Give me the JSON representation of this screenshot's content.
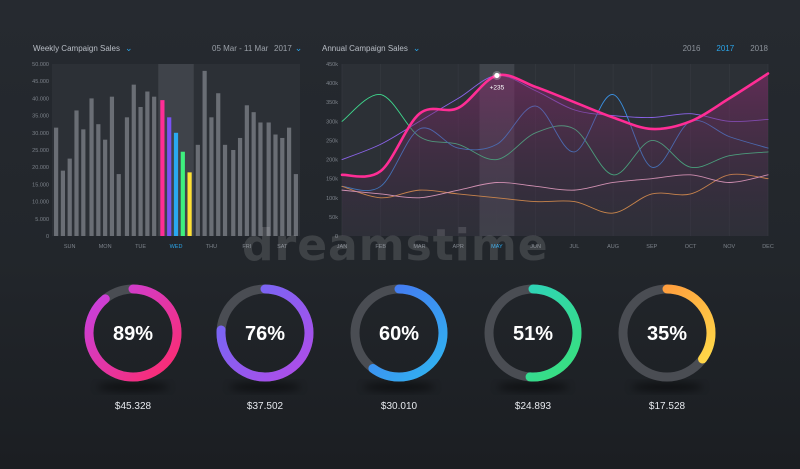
{
  "weekly": {
    "title": "Weekly Campaign Sales",
    "date_range": "05 Mar - 11 Mar",
    "year": "2017"
  },
  "annual": {
    "title": "Annual Campaign Sales",
    "years": [
      "2016",
      "2017",
      "2018"
    ],
    "active_year": "2017",
    "marker_label": "+235"
  },
  "chart_data": [
    {
      "type": "bar",
      "categories": [
        "SUN",
        "MON",
        "TUE",
        "WED",
        "THU",
        "FRI",
        "SAT"
      ],
      "yticks": [
        "0",
        "5.000",
        "10.000",
        "15.000",
        "20.000",
        "25.000",
        "30.000",
        "35.000",
        "40.000",
        "45.000",
        "50.000"
      ],
      "ylim": [
        0,
        50000
      ],
      "highlighted_category": "WED",
      "series": [
        {
          "values": [
            31500,
            40000,
            34500,
            39500,
            26500,
            25000,
            33000
          ]
        },
        {
          "values": [
            19000,
            32500,
            44000,
            34500,
            48000,
            28500,
            29500
          ]
        },
        {
          "values": [
            22500,
            28000,
            37500,
            30000,
            34500,
            38000,
            28500
          ]
        },
        {
          "values": [
            36500,
            40500,
            42000,
            24500,
            41500,
            36000,
            31500
          ]
        },
        {
          "values": [
            31000,
            18000,
            40500,
            18500,
            26500,
            33000,
            18000
          ]
        }
      ],
      "highlight_colors": [
        "#ff2d95",
        "#7a52f5",
        "#2aa8f2",
        "#3ef07e",
        "#ffe135"
      ],
      "bar_color": "#6a6e75"
    },
    {
      "type": "line",
      "categories": [
        "JAN",
        "FEB",
        "MAR",
        "APR",
        "MAY",
        "JUN",
        "JUL",
        "AUG",
        "SEP",
        "OCT",
        "NOV",
        "DEC"
      ],
      "yticks": [
        "0",
        "50k",
        "100k",
        "150k",
        "200k",
        "250k",
        "300k",
        "350k",
        "400k",
        "450k"
      ],
      "ylim": [
        0,
        450000
      ],
      "highlighted_category": "MAY",
      "series": [
        {
          "color": "#ff2d95",
          "main": true,
          "values": [
            160000,
            170000,
            320000,
            335000,
            420000,
            390000,
            350000,
            310000,
            280000,
            300000,
            360000,
            425000
          ]
        },
        {
          "color": "#8a63e8",
          "values": [
            200000,
            240000,
            300000,
            360000,
            420000,
            380000,
            330000,
            315000,
            310000,
            320000,
            300000,
            305000
          ]
        },
        {
          "color": "#3fd78d",
          "values": [
            300000,
            370000,
            260000,
            240000,
            200000,
            270000,
            280000,
            160000,
            250000,
            180000,
            210000,
            220000
          ]
        },
        {
          "color": "#3a8fe0",
          "values": [
            130000,
            130000,
            280000,
            230000,
            240000,
            340000,
            220000,
            370000,
            180000,
            300000,
            260000,
            230000
          ]
        },
        {
          "color": "#f0a04b",
          "values": [
            130000,
            100000,
            120000,
            110000,
            100000,
            90000,
            90000,
            60000,
            110000,
            110000,
            160000,
            150000
          ]
        },
        {
          "color": "#ffb6d6",
          "values": [
            120000,
            110000,
            100000,
            120000,
            140000,
            130000,
            120000,
            140000,
            150000,
            160000,
            140000,
            160000
          ]
        }
      ]
    }
  ],
  "donuts": [
    {
      "percent": 89,
      "label": "89%",
      "amount": "$45.328",
      "color_start": "#ff2a6a",
      "color_end": "#c442e6"
    },
    {
      "percent": 76,
      "label": "76%",
      "amount": "$37.502",
      "color_start": "#b24be8",
      "color_end": "#6b6cf7"
    },
    {
      "percent": 60,
      "label": "60%",
      "amount": "$30.010",
      "color_start": "#2fb6f0",
      "color_end": "#4a6cf2"
    },
    {
      "percent": 51,
      "label": "51%",
      "amount": "$24.893",
      "color_start": "#39e07a",
      "color_end": "#2cd0c8"
    },
    {
      "percent": 35,
      "label": "35%",
      "amount": "$17.528",
      "color_start": "#ffe14a",
      "color_end": "#ff8a3a"
    }
  ],
  "watermark": "dreamstime"
}
